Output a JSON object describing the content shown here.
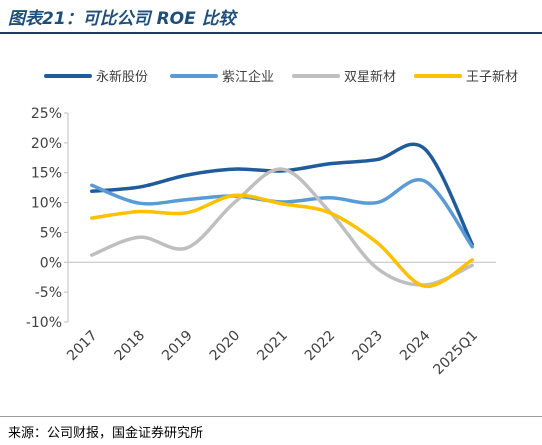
{
  "header": {
    "title": "图表21：可比公司 ROE 比较"
  },
  "footer": {
    "source": "来源：公司财报，国金证券研究所"
  },
  "chart_data": {
    "type": "line",
    "x": [
      "2017",
      "2018",
      "2019",
      "2020",
      "2021",
      "2022",
      "2023",
      "2024",
      "2025Q1"
    ],
    "ylim": [
      -10,
      25
    ],
    "yticks": [
      "-10%",
      "-5%",
      "0%",
      "5%",
      "10%",
      "15%",
      "20%",
      "25%"
    ],
    "ytick_values": [
      -10,
      -5,
      0,
      5,
      10,
      15,
      20,
      25
    ],
    "grid": false,
    "legend_position": "top",
    "series": [
      {
        "name": "永新股份",
        "color": "#1f5c99",
        "values": [
          11.9,
          12.6,
          14.6,
          15.6,
          15.3,
          16.5,
          17.2,
          19.0,
          3.0
        ]
      },
      {
        "name": "紫江企业",
        "color": "#5b9bd5",
        "values": [
          12.9,
          9.9,
          10.5,
          11.1,
          10.1,
          10.8,
          10.0,
          13.6,
          2.6
        ]
      },
      {
        "name": "双星新材",
        "color": "#bfbfbf",
        "values": [
          1.2,
          4.2,
          2.4,
          10.0,
          15.6,
          8.5,
          -1.0,
          -3.8,
          -0.5
        ]
      },
      {
        "name": "王子新材",
        "color": "#ffc000",
        "values": [
          7.4,
          8.5,
          8.3,
          11.2,
          9.8,
          8.3,
          3.3,
          -4.0,
          0.4
        ]
      }
    ]
  }
}
